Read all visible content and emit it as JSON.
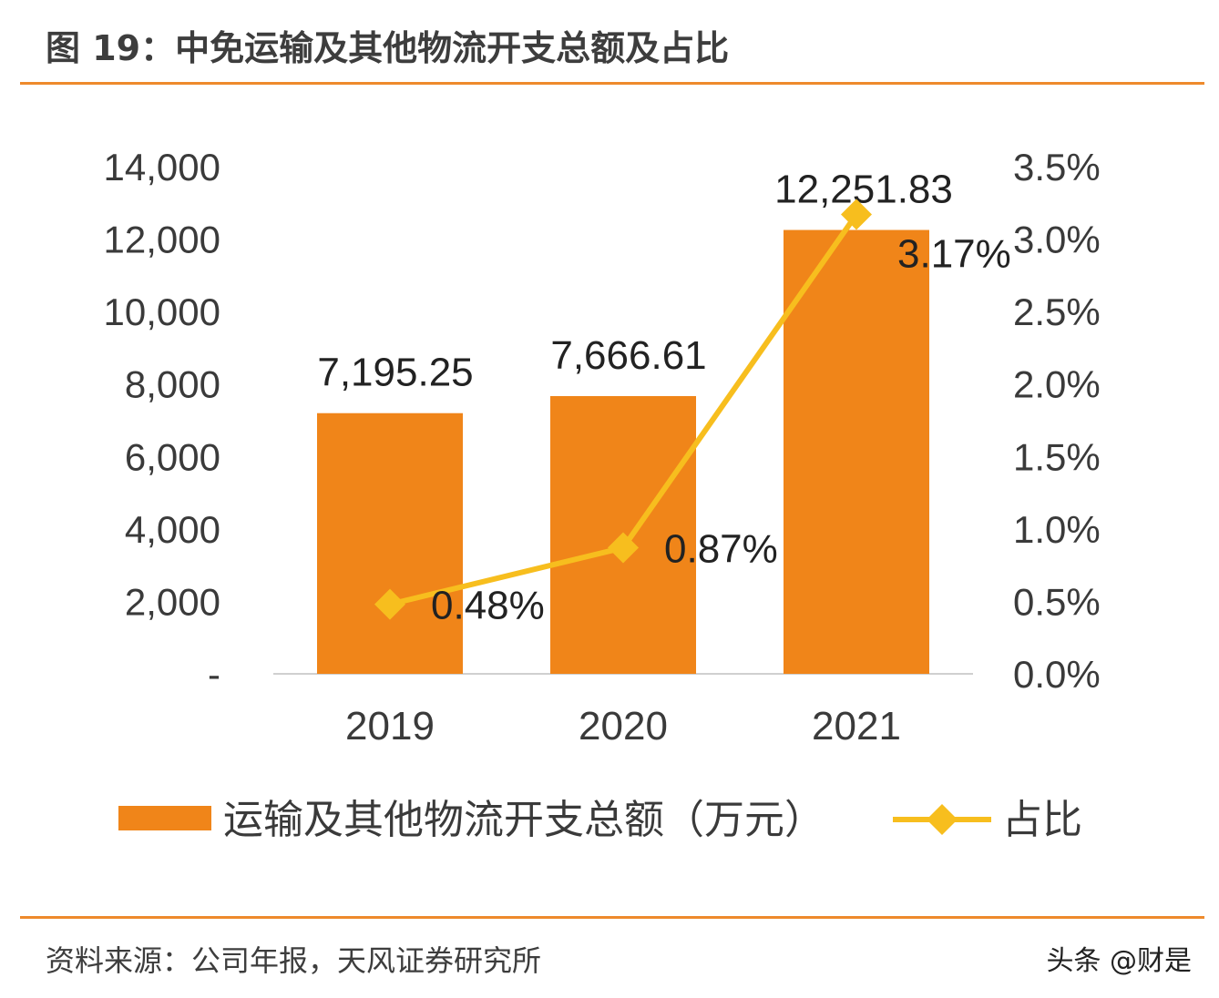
{
  "header": {
    "title": "图 19：中免运输及其他物流开支总额及占比"
  },
  "footer": {
    "source": "资料来源：公司年报，天风证券研究所",
    "watermark": "头条 @财是"
  },
  "colors": {
    "bar": "#f08519",
    "line": "#f7be1e",
    "rule": "#ee8a2c",
    "axis_text": "#3a3a3a"
  },
  "chart_data": {
    "type": "bar",
    "categories": [
      "2019",
      "2020",
      "2021"
    ],
    "series": [
      {
        "name": "运输及其他物流开支总额（万元）",
        "type": "bar",
        "axis": "left",
        "values": [
          7195.25,
          7666.61,
          12251.83
        ],
        "labels": [
          "7,195.25",
          "7,666.61",
          "12,251.83"
        ]
      },
      {
        "name": "占比",
        "type": "line",
        "axis": "right",
        "values": [
          0.48,
          0.87,
          3.17
        ],
        "labels": [
          "0.48%",
          "0.87%",
          "3.17%"
        ]
      }
    ],
    "left_axis": {
      "ylim": [
        0,
        14000
      ],
      "ticks": [
        "-",
        "2,000",
        "4,000",
        "6,000",
        "8,000",
        "10,000",
        "12,000",
        "14,000"
      ]
    },
    "right_axis": {
      "ylim": [
        0,
        3.5
      ],
      "ticks": [
        "0.0%",
        "0.5%",
        "1.0%",
        "1.5%",
        "2.0%",
        "2.5%",
        "3.0%",
        "3.5%"
      ]
    },
    "legend_position": "bottom",
    "grid": false
  }
}
